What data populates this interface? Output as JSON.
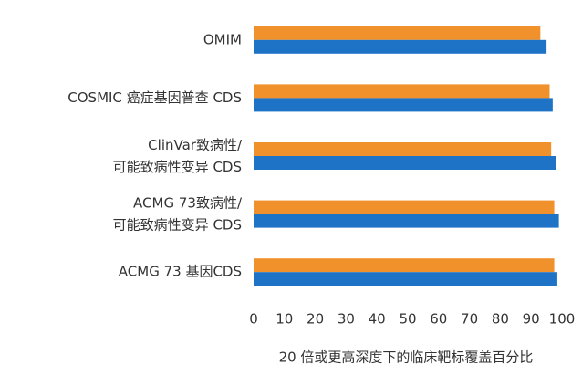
{
  "chart_data": {
    "type": "hbar",
    "x_label": "20 倍或更高深度下的临床靶标覆盖百分比",
    "categories": [
      "OMIM",
      "COSMIC 癌症基因普查 CDS",
      "ClinVar致病性/\n可能致病性变异 CDS",
      "ACMG 73致病性/\n可能致病性变异 CDS",
      "ACMG 73 基因CDS"
    ],
    "series": [
      {
        "color": "#f0912b",
        "values": [
          93,
          96,
          96.5,
          97.5,
          97.5
        ]
      },
      {
        "color": "#1f73c6",
        "values": [
          95,
          97,
          98,
          99,
          98.5
        ]
      }
    ],
    "xlim": [
      0,
      100
    ],
    "xticks": [
      0,
      10,
      20,
      30,
      40,
      50,
      60,
      70,
      80,
      90,
      100
    ],
    "grid": false
  }
}
